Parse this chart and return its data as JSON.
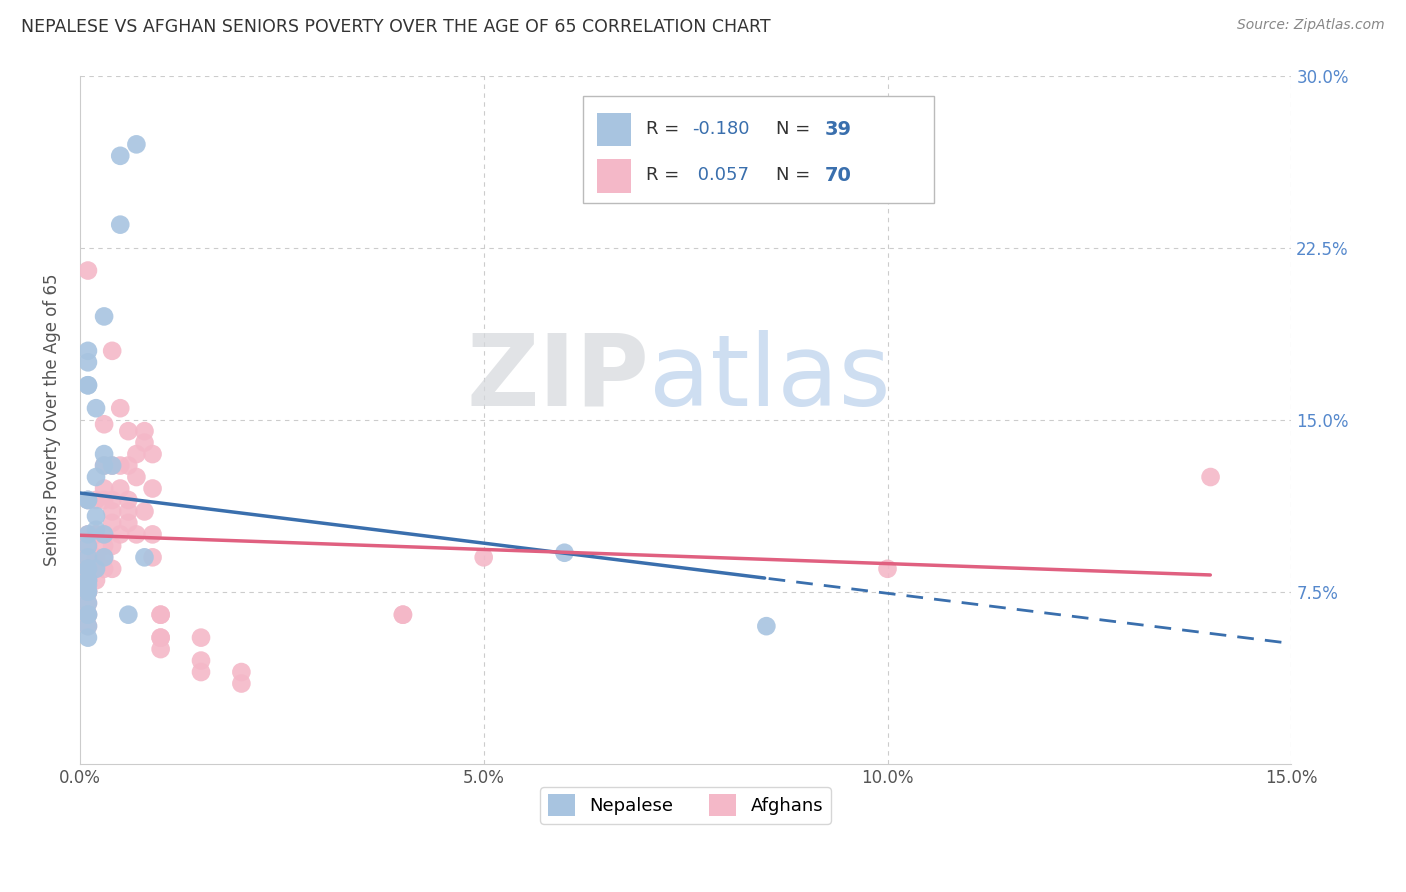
{
  "title": "NEPALESE VS AFGHAN SENIORS POVERTY OVER THE AGE OF 65 CORRELATION CHART",
  "source": "Source: ZipAtlas.com",
  "ylabel": "Seniors Poverty Over the Age of 65",
  "xlim": [
    0.0,
    0.15
  ],
  "ylim": [
    0.0,
    0.3
  ],
  "nepalese_color": "#a8c4e0",
  "afghan_color": "#f4b8c8",
  "nepalese_line_color": "#3a6fad",
  "afghan_line_color": "#e06080",
  "nepalese_R": "-0.180",
  "nepalese_N": "39",
  "afghan_R": "0.057",
  "afghan_N": "70",
  "watermark_zip": "ZIP",
  "watermark_atlas": "atlas",
  "nepalese_x": [
    0.005,
    0.007,
    0.005,
    0.003,
    0.001,
    0.001,
    0.001,
    0.001,
    0.002,
    0.003,
    0.003,
    0.004,
    0.002,
    0.001,
    0.001,
    0.002,
    0.002,
    0.003,
    0.001,
    0.001,
    0.001,
    0.003,
    0.008,
    0.001,
    0.001,
    0.002,
    0.001,
    0.001,
    0.001,
    0.001,
    0.001,
    0.001,
    0.001,
    0.006,
    0.001,
    0.001,
    0.001,
    0.06,
    0.085
  ],
  "nepalese_y": [
    0.265,
    0.27,
    0.235,
    0.195,
    0.18,
    0.175,
    0.165,
    0.165,
    0.155,
    0.135,
    0.13,
    0.13,
    0.125,
    0.115,
    0.115,
    0.108,
    0.102,
    0.1,
    0.1,
    0.095,
    0.09,
    0.09,
    0.09,
    0.085,
    0.085,
    0.085,
    0.08,
    0.08,
    0.078,
    0.075,
    0.075,
    0.07,
    0.065,
    0.065,
    0.065,
    0.06,
    0.055,
    0.092,
    0.06
  ],
  "afghan_x": [
    0.001,
    0.001,
    0.001,
    0.001,
    0.001,
    0.001,
    0.001,
    0.001,
    0.001,
    0.001,
    0.001,
    0.001,
    0.001,
    0.001,
    0.001,
    0.002,
    0.002,
    0.002,
    0.002,
    0.002,
    0.002,
    0.003,
    0.003,
    0.003,
    0.003,
    0.003,
    0.003,
    0.003,
    0.003,
    0.004,
    0.004,
    0.004,
    0.004,
    0.004,
    0.004,
    0.004,
    0.005,
    0.005,
    0.005,
    0.005,
    0.006,
    0.006,
    0.006,
    0.006,
    0.006,
    0.007,
    0.007,
    0.007,
    0.008,
    0.008,
    0.008,
    0.009,
    0.009,
    0.009,
    0.009,
    0.01,
    0.01,
    0.01,
    0.01,
    0.01,
    0.015,
    0.015,
    0.015,
    0.02,
    0.02,
    0.04,
    0.04,
    0.05,
    0.1,
    0.14
  ],
  "afghan_y": [
    0.215,
    0.115,
    0.1,
    0.095,
    0.09,
    0.085,
    0.085,
    0.082,
    0.08,
    0.075,
    0.075,
    0.075,
    0.07,
    0.065,
    0.06,
    0.115,
    0.1,
    0.1,
    0.09,
    0.085,
    0.08,
    0.148,
    0.13,
    0.12,
    0.115,
    0.1,
    0.095,
    0.09,
    0.085,
    0.18,
    0.13,
    0.115,
    0.11,
    0.105,
    0.095,
    0.085,
    0.155,
    0.13,
    0.12,
    0.1,
    0.145,
    0.13,
    0.115,
    0.11,
    0.105,
    0.135,
    0.125,
    0.1,
    0.145,
    0.14,
    0.11,
    0.135,
    0.12,
    0.1,
    0.09,
    0.065,
    0.065,
    0.055,
    0.055,
    0.05,
    0.055,
    0.045,
    0.04,
    0.04,
    0.035,
    0.065,
    0.065,
    0.09,
    0.085,
    0.125
  ]
}
